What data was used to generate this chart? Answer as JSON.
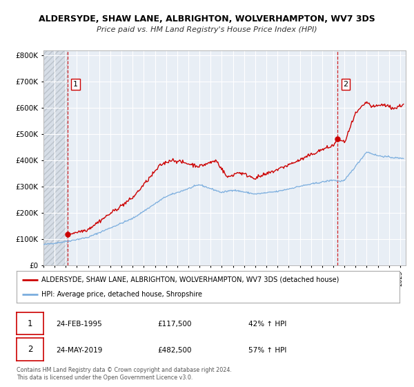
{
  "title": "ALDERSYDE, SHAW LANE, ALBRIGHTON, WOLVERHAMPTON, WV7 3DS",
  "subtitle": "Price paid vs. HM Land Registry's House Price Index (HPI)",
  "legend_line1": "ALDERSYDE, SHAW LANE, ALBRIGHTON, WOLVERHAMPTON, WV7 3DS (detached house)",
  "legend_line2": "HPI: Average price, detached house, Shropshire",
  "marker1_date": "24-FEB-1995",
  "marker1_price": 117500,
  "marker1_label": "42% ↑ HPI",
  "marker2_date": "24-MAY-2019",
  "marker2_price": 482500,
  "marker2_label": "57% ↑ HPI",
  "marker1_x": 1995.15,
  "marker2_x": 2019.4,
  "footnote1": "Contains HM Land Registry data © Crown copyright and database right 2024.",
  "footnote2": "This data is licensed under the Open Government Licence v3.0.",
  "red_color": "#cc0000",
  "blue_color": "#7aadde",
  "bg_color": "#ffffff",
  "plot_bg": "#e8eef5",
  "grid_color": "#ffffff",
  "ylim": [
    0,
    820000
  ],
  "xlim": [
    1993.0,
    2025.5
  ],
  "xlabel_years": [
    1993,
    1994,
    1995,
    1996,
    1997,
    1998,
    1999,
    2000,
    2001,
    2002,
    2003,
    2004,
    2005,
    2006,
    2007,
    2008,
    2009,
    2010,
    2011,
    2012,
    2013,
    2014,
    2015,
    2016,
    2017,
    2018,
    2019,
    2020,
    2021,
    2022,
    2023,
    2024,
    2025
  ],
  "yticks": [
    0,
    100000,
    200000,
    300000,
    400000,
    500000,
    600000,
    700000,
    800000
  ]
}
